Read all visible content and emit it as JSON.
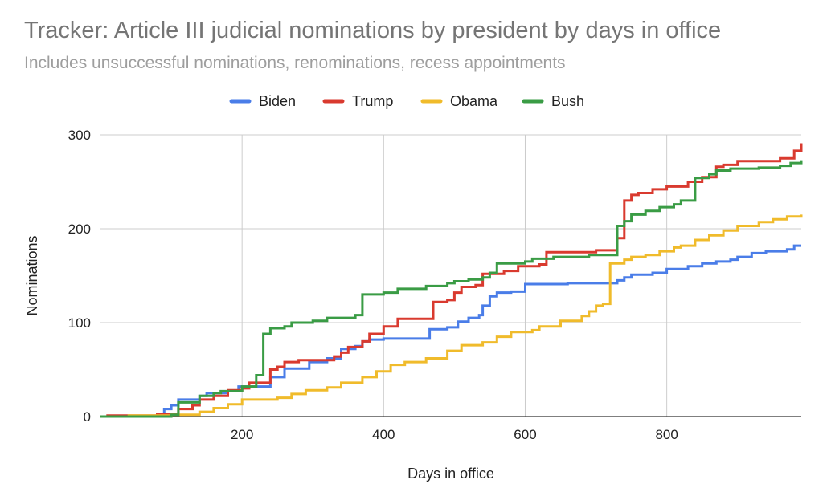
{
  "chart_data": {
    "type": "line",
    "title": "Tracker: Article III judicial nominations by president by days in office",
    "subtitle": "Includes unsuccessful nominations, renominations, recess appointments",
    "xlabel": "Days in office",
    "ylabel": "Nominations",
    "xlim": [
      0,
      990
    ],
    "ylim": [
      0,
      300
    ],
    "x_ticks": [
      200,
      400,
      600,
      800
    ],
    "y_ticks": [
      0,
      100,
      200,
      300
    ],
    "grid": true,
    "legend_position": "top",
    "step": true,
    "series": [
      {
        "name": "Biden",
        "color": "#4a7de8",
        "points": [
          [
            0,
            0
          ],
          [
            50,
            0
          ],
          [
            80,
            2
          ],
          [
            90,
            8
          ],
          [
            100,
            12
          ],
          [
            110,
            18
          ],
          [
            130,
            18
          ],
          [
            140,
            22
          ],
          [
            150,
            25
          ],
          [
            180,
            27
          ],
          [
            195,
            32
          ],
          [
            230,
            32
          ],
          [
            240,
            42
          ],
          [
            260,
            51
          ],
          [
            290,
            51
          ],
          [
            295,
            58
          ],
          [
            320,
            62
          ],
          [
            340,
            72
          ],
          [
            360,
            75
          ],
          [
            370,
            80
          ],
          [
            380,
            82
          ],
          [
            400,
            83
          ],
          [
            460,
            83
          ],
          [
            465,
            93
          ],
          [
            490,
            95
          ],
          [
            505,
            101
          ],
          [
            520,
            105
          ],
          [
            535,
            108
          ],
          [
            540,
            118
          ],
          [
            550,
            128
          ],
          [
            560,
            132
          ],
          [
            580,
            133
          ],
          [
            600,
            141
          ],
          [
            640,
            141
          ],
          [
            660,
            142
          ],
          [
            720,
            142
          ],
          [
            730,
            145
          ],
          [
            740,
            148
          ],
          [
            750,
            151
          ],
          [
            780,
            153
          ],
          [
            800,
            157
          ],
          [
            830,
            160
          ],
          [
            850,
            163
          ],
          [
            870,
            165
          ],
          [
            890,
            167
          ],
          [
            900,
            170
          ],
          [
            920,
            174
          ],
          [
            940,
            176
          ],
          [
            970,
            178
          ],
          [
            980,
            182
          ],
          [
            990,
            182
          ]
        ]
      },
      {
        "name": "Trump",
        "color": "#d93a2f",
        "points": [
          [
            0,
            0
          ],
          [
            10,
            1
          ],
          [
            60,
            1
          ],
          [
            80,
            3
          ],
          [
            100,
            3
          ],
          [
            110,
            8
          ],
          [
            130,
            12
          ],
          [
            140,
            18
          ],
          [
            160,
            22
          ],
          [
            180,
            28
          ],
          [
            200,
            30
          ],
          [
            210,
            36
          ],
          [
            240,
            50
          ],
          [
            250,
            53
          ],
          [
            260,
            58
          ],
          [
            280,
            60
          ],
          [
            300,
            60
          ],
          [
            330,
            64
          ],
          [
            340,
            68
          ],
          [
            350,
            74
          ],
          [
            370,
            80
          ],
          [
            380,
            88
          ],
          [
            400,
            96
          ],
          [
            420,
            104
          ],
          [
            460,
            104
          ],
          [
            470,
            122
          ],
          [
            490,
            124
          ],
          [
            500,
            132
          ],
          [
            510,
            138
          ],
          [
            530,
            140
          ],
          [
            540,
            152
          ],
          [
            570,
            155
          ],
          [
            590,
            160
          ],
          [
            620,
            162
          ],
          [
            630,
            175
          ],
          [
            700,
            177
          ],
          [
            720,
            177
          ],
          [
            730,
            190
          ],
          [
            740,
            230
          ],
          [
            750,
            236
          ],
          [
            760,
            238
          ],
          [
            780,
            242
          ],
          [
            800,
            245
          ],
          [
            830,
            250
          ],
          [
            850,
            255
          ],
          [
            870,
            266
          ],
          [
            880,
            268
          ],
          [
            900,
            272
          ],
          [
            960,
            275
          ],
          [
            980,
            283
          ],
          [
            990,
            291
          ]
        ]
      },
      {
        "name": "Obama",
        "color": "#f0bb2b",
        "points": [
          [
            0,
            0
          ],
          [
            40,
            1
          ],
          [
            100,
            2
          ],
          [
            140,
            5
          ],
          [
            160,
            9
          ],
          [
            180,
            13
          ],
          [
            200,
            18
          ],
          [
            250,
            20
          ],
          [
            270,
            24
          ],
          [
            290,
            28
          ],
          [
            320,
            31
          ],
          [
            340,
            36
          ],
          [
            370,
            42
          ],
          [
            390,
            48
          ],
          [
            410,
            55
          ],
          [
            430,
            58
          ],
          [
            460,
            62
          ],
          [
            490,
            70
          ],
          [
            510,
            76
          ],
          [
            540,
            79
          ],
          [
            560,
            85
          ],
          [
            580,
            90
          ],
          [
            610,
            92
          ],
          [
            620,
            96
          ],
          [
            650,
            102
          ],
          [
            680,
            107
          ],
          [
            690,
            112
          ],
          [
            700,
            118
          ],
          [
            710,
            120
          ],
          [
            720,
            163
          ],
          [
            740,
            167
          ],
          [
            750,
            170
          ],
          [
            770,
            172
          ],
          [
            790,
            176
          ],
          [
            810,
            180
          ],
          [
            820,
            182
          ],
          [
            840,
            188
          ],
          [
            860,
            193
          ],
          [
            880,
            198
          ],
          [
            900,
            203
          ],
          [
            930,
            207
          ],
          [
            950,
            210
          ],
          [
            970,
            213
          ],
          [
            990,
            215
          ]
        ]
      },
      {
        "name": "Bush",
        "color": "#3a9c45",
        "points": [
          [
            0,
            0
          ],
          [
            100,
            2
          ],
          [
            110,
            15
          ],
          [
            140,
            22
          ],
          [
            160,
            25
          ],
          [
            170,
            27
          ],
          [
            200,
            32
          ],
          [
            220,
            44
          ],
          [
            230,
            88
          ],
          [
            240,
            94
          ],
          [
            260,
            96
          ],
          [
            270,
            100
          ],
          [
            300,
            102
          ],
          [
            320,
            105
          ],
          [
            360,
            108
          ],
          [
            370,
            130
          ],
          [
            400,
            132
          ],
          [
            420,
            136
          ],
          [
            460,
            139
          ],
          [
            490,
            142
          ],
          [
            500,
            144
          ],
          [
            520,
            146
          ],
          [
            540,
            148
          ],
          [
            550,
            153
          ],
          [
            560,
            163
          ],
          [
            600,
            165
          ],
          [
            610,
            168
          ],
          [
            640,
            170
          ],
          [
            690,
            172
          ],
          [
            720,
            172
          ],
          [
            730,
            203
          ],
          [
            740,
            208
          ],
          [
            750,
            215
          ],
          [
            770,
            219
          ],
          [
            790,
            223
          ],
          [
            810,
            226
          ],
          [
            820,
            230
          ],
          [
            840,
            254
          ],
          [
            860,
            258
          ],
          [
            870,
            262
          ],
          [
            890,
            264
          ],
          [
            930,
            265
          ],
          [
            960,
            267
          ],
          [
            975,
            270
          ],
          [
            990,
            273
          ]
        ]
      }
    ]
  }
}
